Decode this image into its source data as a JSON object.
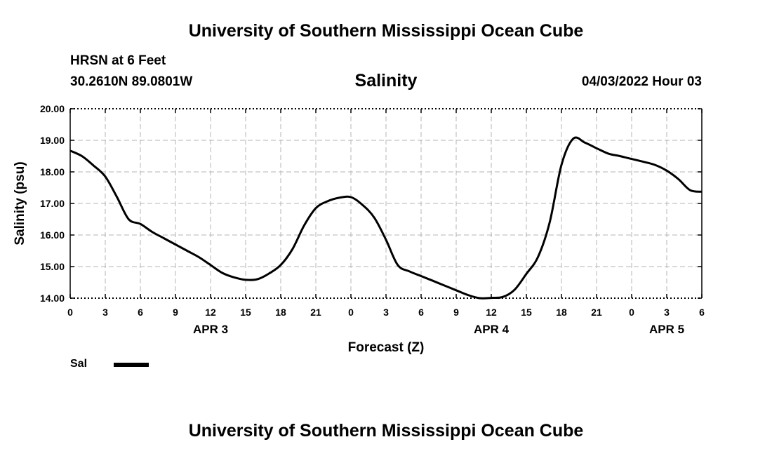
{
  "page": {
    "top_title": "University of Southern Mississippi Ocean Cube",
    "bottom_title": "University of Southern Mississippi Ocean Cube",
    "station": "HRSN at 6 Feet",
    "coords": "30.2610N  89.0801W",
    "timestamp": "04/03/2022 Hour 03"
  },
  "chart_data": {
    "type": "line",
    "title": "Salinity",
    "xlabel": "Forecast (Z)",
    "ylabel": "Salinity (psu)",
    "ylim": [
      14.0,
      20.0
    ],
    "yticks": [
      "20.00",
      "19.00",
      "18.00",
      "17.00",
      "16.00",
      "15.00",
      "14.00"
    ],
    "xlim": [
      0,
      54
    ],
    "xtick_labels": [
      "0",
      "3",
      "6",
      "9",
      "12",
      "15",
      "18",
      "21",
      "0",
      "3",
      "6",
      "9",
      "12",
      "15",
      "18",
      "21",
      "0",
      "3",
      "6"
    ],
    "day_labels": [
      {
        "label": "APR 3",
        "hour": 12
      },
      {
        "label": "APR 4",
        "hour": 36
      },
      {
        "label": "APR 5",
        "hour": 51
      }
    ],
    "grid": true,
    "legend": [
      {
        "label": "Sal",
        "color": "#000000"
      }
    ],
    "series": [
      {
        "name": "Sal",
        "x": [
          0,
          1,
          2,
          3,
          4,
          5,
          6,
          7,
          8,
          9,
          10,
          11,
          12,
          13,
          14,
          15,
          16,
          17,
          18,
          19,
          20,
          21,
          22,
          23,
          24,
          25,
          26,
          27,
          28,
          29,
          30,
          31,
          32,
          33,
          34,
          35,
          36,
          37,
          38,
          39,
          40,
          41,
          42,
          43,
          44,
          45,
          46,
          47,
          48,
          49,
          50,
          51,
          52,
          53,
          54
        ],
        "values": [
          18.67,
          18.5,
          18.2,
          17.85,
          17.2,
          16.5,
          16.35,
          16.1,
          15.9,
          15.7,
          15.5,
          15.3,
          15.05,
          14.8,
          14.66,
          14.58,
          14.6,
          14.78,
          15.05,
          15.55,
          16.3,
          16.85,
          17.07,
          17.18,
          17.2,
          16.95,
          16.55,
          15.85,
          15.05,
          14.85,
          14.7,
          14.55,
          14.4,
          14.25,
          14.1,
          14.0,
          14.01,
          14.04,
          14.27,
          14.77,
          15.31,
          16.41,
          18.22,
          19.05,
          18.93,
          18.75,
          18.58,
          18.5,
          18.41,
          18.32,
          18.22,
          18.04,
          17.77,
          17.42,
          17.37
        ]
      }
    ]
  }
}
